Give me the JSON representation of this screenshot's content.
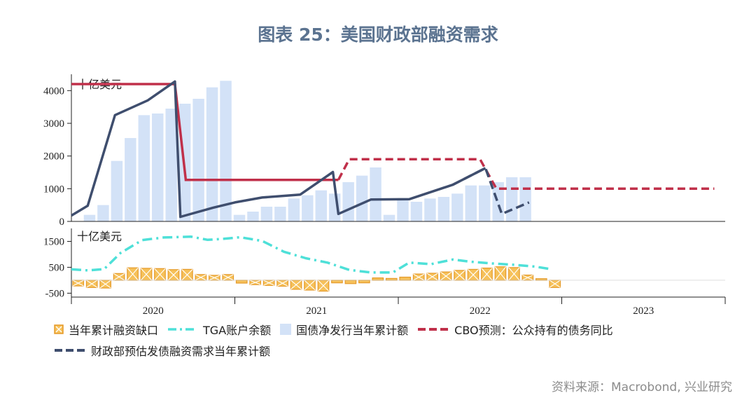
{
  "title": "图表 25：美国财政部融资需求",
  "source": "资料来源：Macrobond, 兴业研究",
  "legend": [
    {
      "label": "当年累计融资缺口",
      "key": "gap"
    },
    {
      "label": "TGA账户余额",
      "key": "tga"
    },
    {
      "label": "国债净发行当年累计额",
      "key": "net"
    },
    {
      "label": "CBO预测：公众持有的债务同比",
      "key": "cbo"
    },
    {
      "label": "财政部预估发债融资需求当年累计额",
      "key": "need"
    }
  ],
  "colors": {
    "gap_fill": "#f6c15a",
    "gap_stroke": "#e59a2a",
    "tga": "#4ee0d8",
    "net": "#d3e2f7",
    "cbo": "#c0304a",
    "need": "#3f4e6e",
    "axis": "#222222"
  },
  "chart_data": {
    "type": "bar",
    "x_labels": [
      "2020",
      "2021",
      "2022",
      "2023"
    ],
    "top": {
      "unit": "十亿美元",
      "ylim": [
        0,
        4500
      ],
      "yticks": [
        0,
        1000,
        2000,
        3000,
        4000
      ],
      "net_issuance": [
        200,
        500,
        1850,
        2550,
        3250,
        3300,
        3450,
        3600,
        3750,
        4100,
        4300,
        200,
        300,
        450,
        450,
        700,
        800,
        950,
        850,
        1200,
        1400,
        1650,
        200,
        650,
        600,
        700,
        750,
        850,
        1100,
        1100,
        1200,
        1350,
        1350
      ],
      "need_points": [
        [
          0,
          180
        ],
        [
          3,
          480
        ],
        [
          8,
          3250
        ],
        [
          14,
          3700
        ],
        [
          19,
          4280
        ],
        [
          20,
          140
        ],
        [
          26,
          420
        ],
        [
          30,
          580
        ],
        [
          35,
          730
        ],
        [
          42,
          820
        ],
        [
          48,
          1510
        ],
        [
          49,
          230
        ],
        [
          55,
          670
        ],
        [
          62,
          680
        ],
        [
          70,
          1120
        ],
        [
          76,
          1630
        ]
      ],
      "need_forecast": [
        [
          70,
          1120
        ],
        [
          76,
          1630
        ],
        [
          79,
          230
        ],
        [
          84,
          580
        ]
      ],
      "cbo_solid": [
        [
          0,
          4200
        ],
        [
          19,
          4200
        ],
        [
          21,
          1270
        ],
        [
          49,
          1270
        ]
      ],
      "cbo_dashed": [
        [
          49,
          1270
        ],
        [
          51,
          1900
        ],
        [
          75,
          1900
        ],
        [
          78,
          1000
        ],
        [
          118,
          1000
        ]
      ]
    },
    "bottom": {
      "unit": "十亿美元",
      "ylim": [
        -650,
        2000
      ],
      "yticks": [
        -500,
        500,
        1500
      ],
      "tga_points": [
        [
          0,
          420
        ],
        [
          3,
          380
        ],
        [
          6,
          430
        ],
        [
          9,
          1050
        ],
        [
          13,
          1550
        ],
        [
          17,
          1650
        ],
        [
          22,
          1680
        ],
        [
          25,
          1560
        ],
        [
          28,
          1600
        ],
        [
          31,
          1660
        ],
        [
          35,
          1520
        ],
        [
          39,
          1100
        ],
        [
          43,
          850
        ],
        [
          47,
          680
        ],
        [
          51,
          400
        ],
        [
          55,
          300
        ],
        [
          59,
          300
        ],
        [
          62,
          680
        ],
        [
          66,
          620
        ],
        [
          70,
          800
        ],
        [
          73,
          720
        ],
        [
          77,
          650
        ],
        [
          81,
          600
        ],
        [
          85,
          530
        ],
        [
          88,
          430
        ]
      ],
      "gap_monthly": [
        -220,
        -280,
        -300,
        260,
        480,
        460,
        450,
        410,
        420,
        220,
        190,
        220,
        -110,
        -170,
        -200,
        -230,
        -350,
        -380,
        -420,
        -100,
        -130,
        -100,
        90,
        70,
        120,
        240,
        270,
        320,
        380,
        420,
        470,
        520,
        490,
        200,
        60,
        -280
      ]
    }
  }
}
